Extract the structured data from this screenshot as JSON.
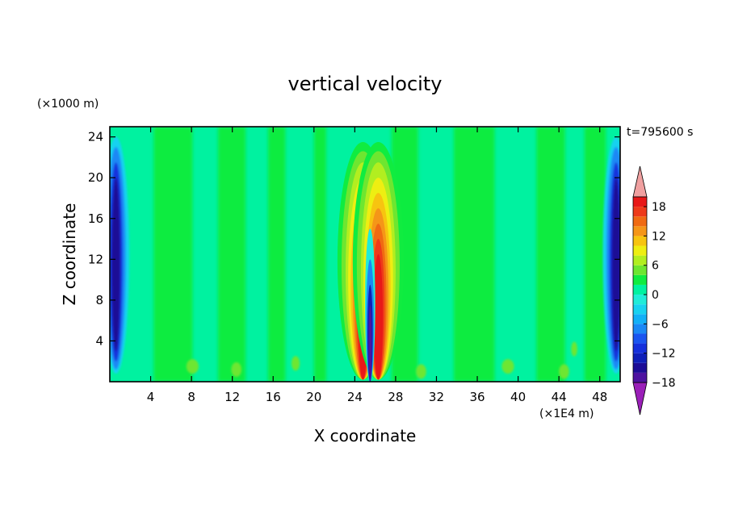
{
  "chart_data": {
    "type": "heatmap",
    "title": "vertical velocity",
    "xlabel": "X coordinate",
    "ylabel": "Z coordinate",
    "x_unit": "(×1E4 m)",
    "y_unit": "(×1000 m)",
    "time_label": "t=795600 s",
    "xlim": [
      0,
      50
    ],
    "ylim": [
      0,
      25
    ],
    "x_ticks": [
      4,
      8,
      12,
      16,
      20,
      24,
      28,
      32,
      36,
      40,
      44,
      48
    ],
    "y_ticks": [
      4,
      8,
      12,
      16,
      20,
      24
    ],
    "grid": false,
    "colorbar": {
      "ticks": [
        18,
        12,
        6,
        0,
        -6,
        -12,
        -18
      ],
      "levels": [
        -20,
        -18,
        -16,
        -14,
        -12,
        -10,
        -8,
        -6,
        -4,
        -2,
        0,
        2,
        4,
        6,
        8,
        10,
        12,
        14,
        16,
        18,
        20
      ],
      "colors": [
        "#9a1fb8",
        "#4d12a0",
        "#1c0c96",
        "#0f1fb8",
        "#1530dc",
        "#1a55f0",
        "#1a88f5",
        "#12b0f7",
        "#18d2f0",
        "#20ecd8",
        "#00f2a0",
        "#10ec40",
        "#6ee630",
        "#b2ee20",
        "#eeee12",
        "#f7c410",
        "#f59618",
        "#f06a12",
        "#ee3a1a",
        "#e81818",
        "#f0a0a0"
      ],
      "placement": "right"
    },
    "features": [
      {
        "name": "updraft-left",
        "x_center": 24.8,
        "z_range": [
          0.5,
          23
        ],
        "w_max": 20
      },
      {
        "name": "updraft-right",
        "x_center": 26.3,
        "z_range": [
          0.5,
          23
        ],
        "w_max": 20
      },
      {
        "name": "downdraft-core",
        "x_center": 25.5,
        "z_range": [
          0.5,
          15
        ],
        "w_min": -20
      },
      {
        "name": "downdraft-west-boundary",
        "x_center": 0.6,
        "z_range": [
          1,
          23
        ],
        "w_min": -16
      },
      {
        "name": "downdraft-east-boundary",
        "x_center": 49.6,
        "z_range": [
          1,
          23
        ],
        "w_min": -16
      },
      {
        "name": "background",
        "w_typical": 0
      }
    ]
  }
}
